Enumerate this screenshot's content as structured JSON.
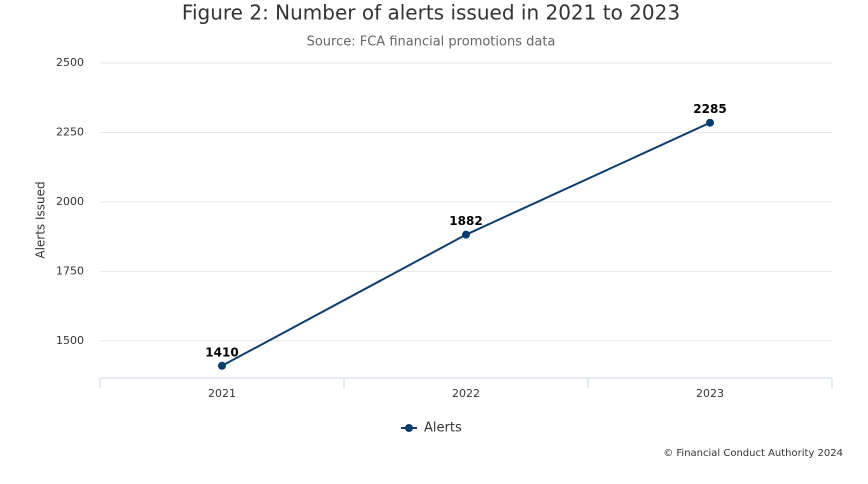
{
  "chart_data": {
    "type": "line",
    "title": "Figure 2: Number of alerts issued in 2021 to 2023",
    "subtitle": "Source: FCA financial promotions data",
    "y_label": "Alerts Issued",
    "categories": [
      "2021",
      "2022",
      "2023"
    ],
    "series": [
      {
        "name": "Alerts",
        "color": "#0b3d6e",
        "values": [
          1410,
          1882,
          2285
        ]
      }
    ],
    "ylim": [
      1366,
      2500
    ],
    "yticks": [
      1500,
      1750,
      2000,
      2250,
      2500
    ],
    "grid": true,
    "legend": "bottom",
    "credit": "© Financial Conduct Authority 2024"
  }
}
